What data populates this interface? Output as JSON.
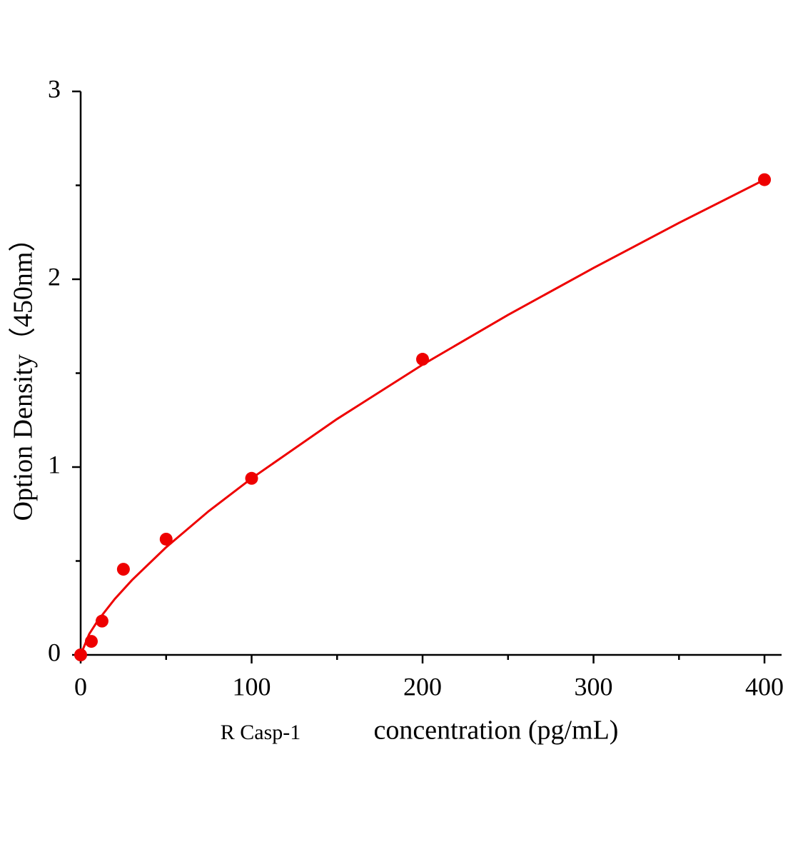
{
  "chart_data": {
    "type": "scatter",
    "xlabel_prefix": "R Casp-1",
    "xlabel": "concentration (pg/mL)",
    "ylabel": "Option Density（450nm）",
    "xlim": [
      0,
      410
    ],
    "ylim": [
      0,
      3
    ],
    "xticks": [
      0,
      100,
      200,
      300,
      400
    ],
    "yticks": [
      0,
      1,
      2,
      3
    ],
    "xminorticks": [
      50,
      150,
      250,
      350
    ],
    "yminorticks": [
      0.5,
      1.5,
      2.5
    ],
    "grid": false,
    "series": [
      {
        "kind": "points",
        "color": "#ee0000",
        "x": [
          0,
          6.25,
          12.5,
          25,
          50,
          100,
          200,
          400
        ],
        "values": [
          0,
          0.072,
          0.18,
          0.456,
          0.616,
          0.94,
          1.574,
          2.53
        ]
      },
      {
        "kind": "line",
        "color": "#ee0000",
        "x": [
          0,
          5,
          10,
          20,
          30,
          50,
          75,
          100,
          150,
          200,
          250,
          300,
          350,
          400
        ],
        "values": [
          0,
          0.111,
          0.182,
          0.298,
          0.398,
          0.573,
          0.766,
          0.94,
          1.256,
          1.545,
          1.81,
          2.06,
          2.3,
          2.53
        ]
      }
    ]
  }
}
